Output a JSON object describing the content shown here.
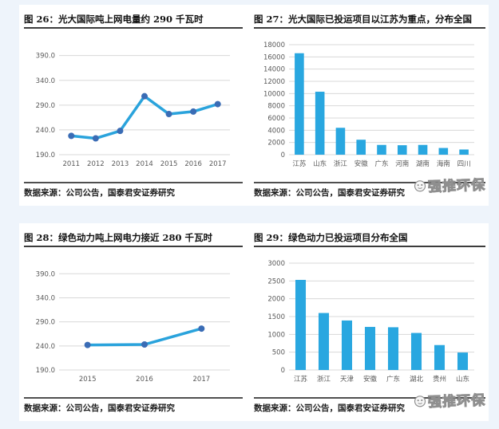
{
  "page": {
    "background": "#eef4fb",
    "panel_bg": "#ffffff",
    "accent_bar": "#29a7e0",
    "accent_line": "#2aa3dc",
    "accent_marker": "#3a6cb5",
    "grid_color": "#d8d8d8",
    "tick_color": "#595959"
  },
  "watermark": {
    "text": "强推环保"
  },
  "figures": [
    {
      "title": "图 26：光大国际吨上网电量约 290 千瓦时",
      "source": "数据来源：公司公告，国泰君安证券研究"
    },
    {
      "title": "图 27：光大国际已投运项目以江苏为重点，分布全国",
      "source": "数据来源：公司公告，国泰君安证券研究"
    },
    {
      "title": "图 28：绿色动力吨上网电力接近 280 千瓦时",
      "source": "数据来源：公司公告，国泰君安证券研究"
    },
    {
      "title": "图 29：绿色动力已投运项目分布全国",
      "source": "数据来源：公司公告，国泰君安证券研究"
    }
  ],
  "chart_data": [
    {
      "type": "line",
      "title": "图 26：光大国际吨上网电量约 290 千瓦时",
      "x": [
        "2011",
        "2012",
        "2013",
        "2014",
        "2015",
        "2016",
        "2017"
      ],
      "values": [
        228,
        223,
        238,
        308,
        272,
        277,
        292
      ],
      "yticks": [
        190,
        240,
        290,
        340,
        390
      ],
      "ytick_labels": [
        "190.0",
        "240.0",
        "290.0",
        "340.0",
        "390.0"
      ],
      "ylim": [
        190,
        412
      ],
      "xlabel": "",
      "ylabel": "",
      "grid": true,
      "legend": false
    },
    {
      "type": "bar",
      "title": "图 27：光大国际已投运项目以江苏为重点，分布全国",
      "categories": [
        "江苏",
        "山东",
        "浙江",
        "安徽",
        "广东",
        "河南",
        "湖南",
        "海南",
        "四川"
      ],
      "values": [
        16600,
        10300,
        4400,
        2450,
        1600,
        1550,
        1600,
        1100,
        850
      ],
      "yticks": [
        0,
        2000,
        4000,
        6000,
        8000,
        10000,
        12000,
        14000,
        16000,
        18000
      ],
      "ytick_labels": [
        "0",
        "2000",
        "4000",
        "6000",
        "8000",
        "10000",
        "12000",
        "14000",
        "16000",
        "18000"
      ],
      "ylim": [
        0,
        18000
      ],
      "xlabel": "",
      "ylabel": "",
      "grid": true,
      "legend": false
    },
    {
      "type": "line",
      "title": "图 28：绿色动力吨上网电力接近 280 千瓦时",
      "x": [
        "2015",
        "2016",
        "2017"
      ],
      "values": [
        242,
        243,
        276
      ],
      "yticks": [
        190,
        240,
        290,
        340,
        390
      ],
      "ytick_labels": [
        "190.0",
        "240.0",
        "290.0",
        "340.0",
        "390.0"
      ],
      "ylim": [
        190,
        412
      ],
      "xlabel": "",
      "ylabel": "",
      "grid": true,
      "legend": false
    },
    {
      "type": "bar",
      "title": "图 29：绿色动力已投运项目分布全国",
      "categories": [
        "江苏",
        "浙江",
        "天津",
        "安徽",
        "广东",
        "湖北",
        "贵州",
        "山东"
      ],
      "values": [
        2530,
        1600,
        1390,
        1210,
        1200,
        1040,
        700,
        490
      ],
      "yticks": [
        0,
        500,
        1000,
        1500,
        2000,
        2500,
        3000
      ],
      "ytick_labels": [
        "0",
        "500",
        "1000",
        "1500",
        "2000",
        "2500",
        "3000"
      ],
      "ylim": [
        0,
        3000
      ],
      "xlabel": "",
      "ylabel": "",
      "grid": true,
      "legend": false
    }
  ]
}
